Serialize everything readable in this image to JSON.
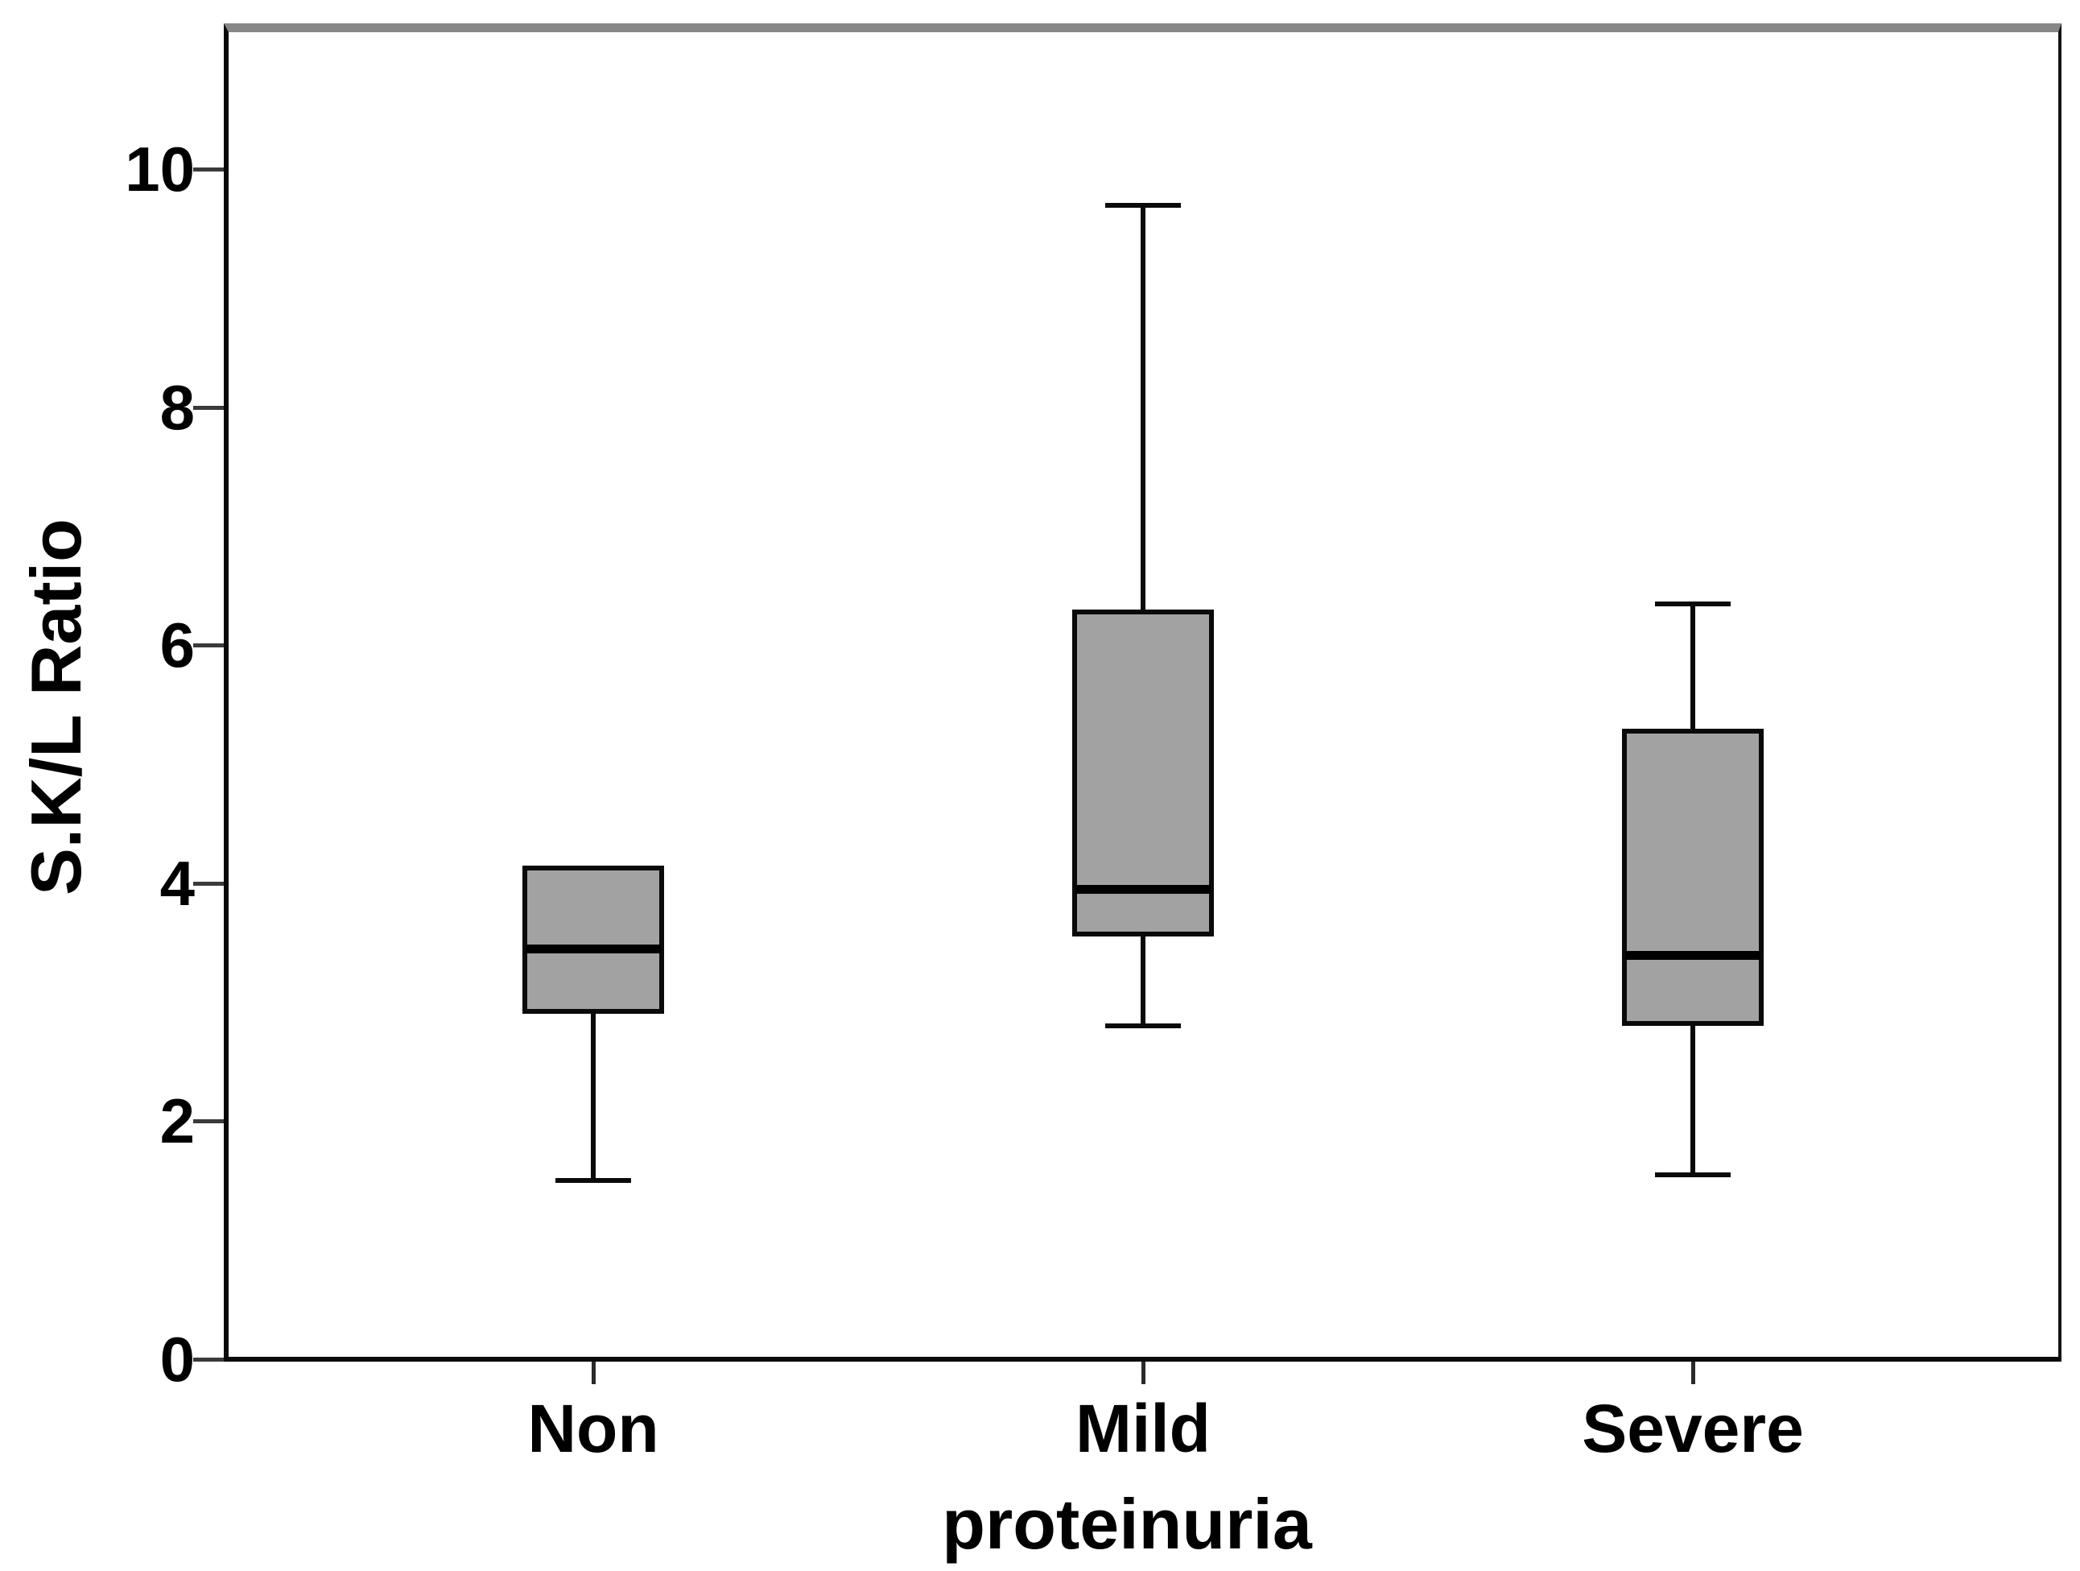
{
  "figure": {
    "background": "#ffffff",
    "frame_top_color": "#878787",
    "frame_line_color": "#0a0a0a",
    "box_fill_color": "#a2a2a2",
    "box_border_color": "#0a0a0a",
    "median_color": "#000000"
  },
  "chart_data": {
    "type": "boxplot",
    "title": "",
    "xlabel": "proteinuria",
    "ylabel": "S.K/L Ratio",
    "categories": [
      "Non",
      "Mild",
      "Severe"
    ],
    "y_ticks": [
      0,
      2,
      4,
      6,
      8,
      10
    ],
    "ylim": [
      0,
      11.2
    ],
    "grid": false,
    "legend": false,
    "series": [
      {
        "category": "Non",
        "min": 1.5,
        "q1": 2.9,
        "median": 3.45,
        "q3": 4.15,
        "max": 4.15,
        "upper_whisker": false,
        "lower_whisker": true
      },
      {
        "category": "Mild",
        "min": 2.8,
        "q1": 3.55,
        "median": 3.95,
        "q3": 6.3,
        "max": 9.7,
        "upper_whisker": true,
        "lower_whisker": true
      },
      {
        "category": "Severe",
        "min": 1.55,
        "q1": 2.8,
        "median": 3.4,
        "q3": 5.3,
        "max": 6.35,
        "upper_whisker": true,
        "lower_whisker": true
      }
    ]
  }
}
